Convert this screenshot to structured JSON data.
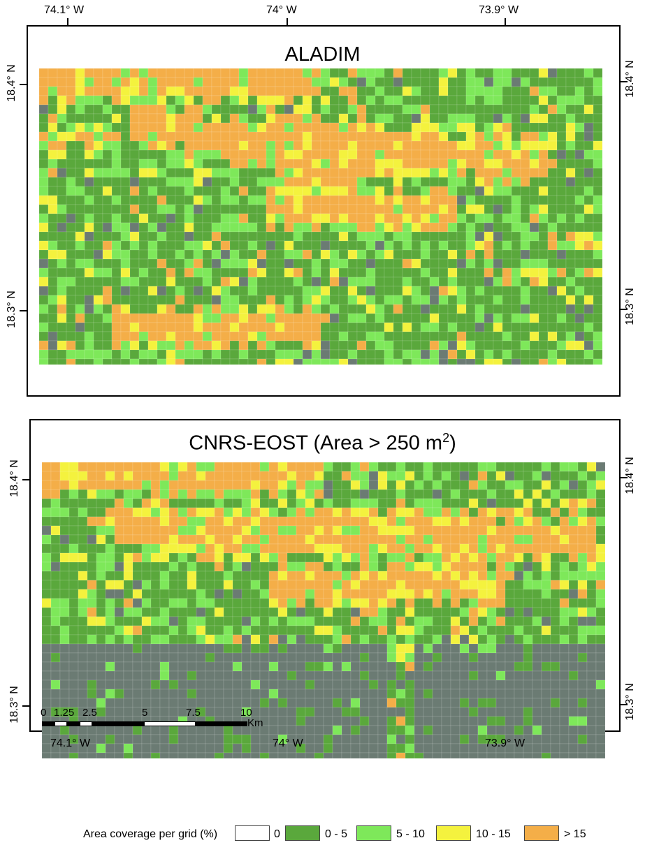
{
  "colors": {
    "none": "#ffffff",
    "c0_5": "#5aa83c",
    "c5_10": "#7ee85a",
    "c10_15": "#f4f23e",
    "c15p": "#f4ae48",
    "imagery": "#6b7b73",
    "imagery_dark": "#555a60"
  },
  "top_map": {
    "title": "ALADIM",
    "top_axis": [
      "74.1° W",
      "74° W",
      "73.9° W"
    ],
    "left_axis": [
      "18.4° N",
      "18.3° N"
    ],
    "right_axis": [
      "18.4° N",
      "18.3° N"
    ]
  },
  "bottom_map": {
    "title_main": "CNRS-EOST (Area > 250 m",
    "title_sup": "2",
    "title_end": ")",
    "left_axis": [
      "18.4° N",
      "18.3° N"
    ],
    "right_axis": [
      "18.4° N",
      "18.3° N"
    ],
    "bottom_axis": [
      "74.1° W",
      "74° W",
      "73.9° W"
    ]
  },
  "scale_bar": {
    "ticks": [
      "0",
      "1.25",
      "2.5",
      "5",
      "7.5",
      "10"
    ],
    "unit": "Km"
  },
  "legend": {
    "title": "Area coverage per grid (%)",
    "classes": [
      {
        "label": "0",
        "color": "#ffffff"
      },
      {
        "label": "0 - 5",
        "color": "#5aa83c"
      },
      {
        "label": "5 - 10",
        "color": "#7ee85a"
      },
      {
        "label": "10 - 15",
        "color": "#f4f23e"
      },
      {
        "label": "> 15",
        "color": "#f4ae48"
      }
    ]
  }
}
